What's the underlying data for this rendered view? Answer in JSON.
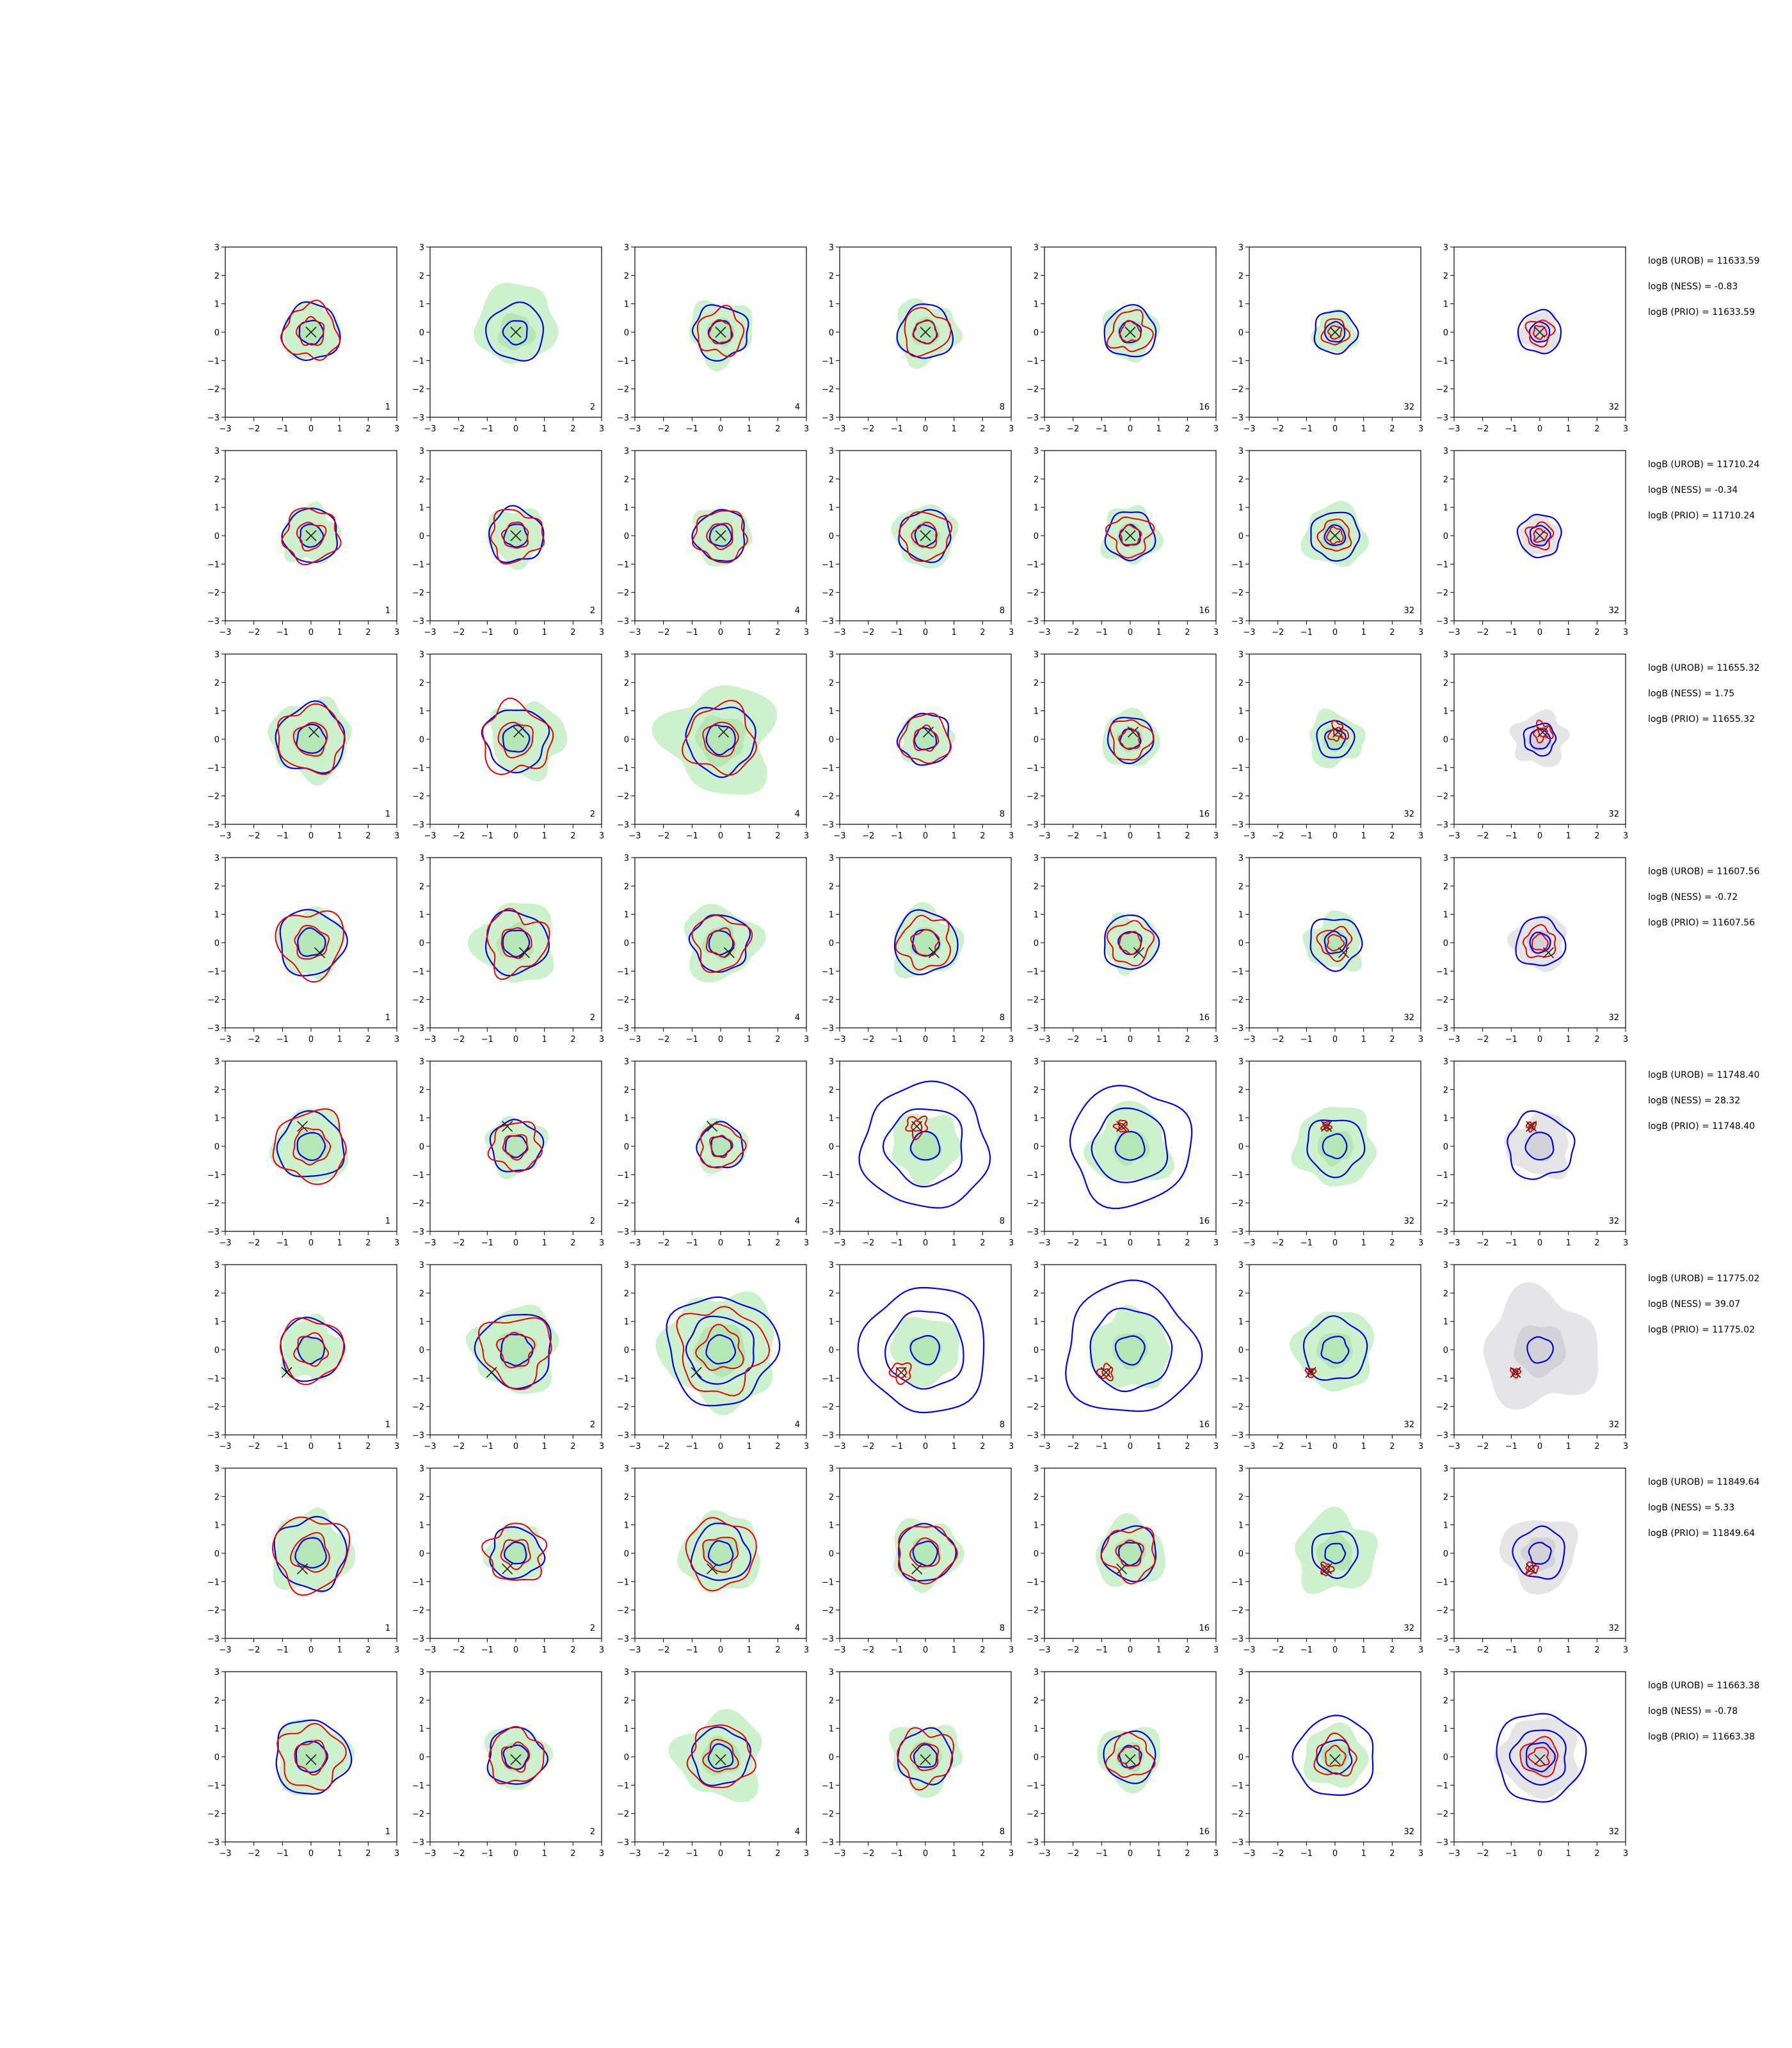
{
  "colors": {
    "fill_green": "#c8f0c8",
    "fill_gray": "#e2e2e6",
    "contour_blue": "#0000ee",
    "contour_red": "#ee0000",
    "marker": "#222222"
  },
  "chart_data": {
    "type": "contour-grid",
    "xlim": [
      -3,
      3
    ],
    "ylim": [
      -3,
      3
    ],
    "xticks": [
      -3,
      -2,
      -1,
      0,
      1,
      2,
      3
    ],
    "yticks": [
      -3,
      -2,
      -1,
      0,
      1,
      2,
      3
    ],
    "tick_labels": [
      "−3",
      "−2",
      "−1",
      "0",
      "1",
      "2",
      "3"
    ],
    "column_labels": [
      "1",
      "2",
      "4",
      "8",
      "16",
      "32",
      "32"
    ],
    "rows": [
      {
        "annotations": [
          "logB (UROB) = 11633.59",
          "logB (NESS) = -0.83",
          "logB (PRIO) = 11633.59"
        ],
        "marker": [
          0.0,
          0.0
        ],
        "fill_r": [
          1.0,
          1.4,
          1.1,
          1.1,
          0.95,
          0.75,
          0.7
        ],
        "blue_outer_r": [
          1.0,
          1.0,
          0.95,
          0.95,
          0.9,
          0.75,
          0.75
        ],
        "red_r": [
          0.95,
          0,
          0.8,
          0.8,
          0.7,
          0.45,
          0.45
        ]
      },
      {
        "annotations": [
          "logB (UROB) = 11710.24",
          "logB (NESS) = -0.34",
          "logB (PRIO) = 11710.24"
        ],
        "marker": [
          0.0,
          0.0
        ],
        "fill_r": [
          1.0,
          1.0,
          1.0,
          1.1,
          1.0,
          1.1,
          0.7
        ],
        "blue_outer_r": [
          0.95,
          0.95,
          0.9,
          0.9,
          0.85,
          0.85,
          0.75
        ],
        "red_r": [
          0.95,
          0.9,
          0.9,
          0.85,
          0.7,
          0.55,
          0.45
        ]
      },
      {
        "annotations": [
          "logB (UROB) = 11655.32",
          "logB (NESS) = 1.75",
          "logB (PRIO) = 11655.32"
        ],
        "marker": [
          0.1,
          0.25
        ],
        "fill_r": [
          1.4,
          1.3,
          1.9,
          0.9,
          1.0,
          0.95,
          0.95
        ],
        "blue_outer_r": [
          1.2,
          1.1,
          1.2,
          0.9,
          0.8,
          0.65,
          0.55
        ],
        "red_r": [
          1.15,
          1.2,
          1.2,
          0.85,
          0.7,
          0.3,
          0.3
        ]
      },
      {
        "annotations": [
          "logB (UROB) = 11607.56",
          "logB (NESS) = -0.72",
          "logB (PRIO) = 11607.56"
        ],
        "marker": [
          0.3,
          -0.35
        ],
        "fill_r": [
          1.2,
          1.4,
          1.3,
          1.2,
          0.95,
          1.0,
          0.95
        ],
        "blue_outer_r": [
          1.15,
          1.1,
          1.0,
          1.1,
          0.95,
          0.9,
          0.85
        ],
        "red_r": [
          1.15,
          1.05,
          0.95,
          0.9,
          0.75,
          0.55,
          0.55
        ]
      },
      {
        "annotations": [
          "logB (UROB) = 11748.40",
          "logB (NESS) = 28.32",
          "logB (PRIO) = 11748.40"
        ],
        "marker": [
          -0.3,
          0.7
        ],
        "fill_r": [
          1.3,
          1.0,
          0.9,
          1.2,
          1.4,
          1.4,
          1.1
        ],
        "blue_outer_r": [
          1.15,
          0.9,
          0.8,
          2.2,
          2.1,
          1.0,
          1.15
        ],
        "red_r": [
          1.25,
          0.85,
          0.75,
          0.35,
          0.2,
          0.15,
          0.15
        ]
      },
      {
        "annotations": [
          "logB (UROB) = 11775.02",
          "logB (NESS) = 39.07",
          "logB (PRIO) = 11775.02"
        ],
        "marker": [
          -0.85,
          -0.8
        ],
        "fill_r": [
          1.1,
          1.5,
          2.0,
          1.2,
          1.4,
          1.4,
          2.0
        ],
        "blue_outer_r": [
          1.1,
          1.3,
          1.9,
          2.2,
          2.3,
          1.1,
          0.0
        ],
        "red_r": [
          1.1,
          1.2,
          1.5,
          0.35,
          0.25,
          0.15,
          0.15
        ]
      },
      {
        "annotations": [
          "logB (UROB) = 11849.64",
          "logB (NESS) = 5.33",
          "logB (PRIO) = 11849.64"
        ],
        "marker": [
          -0.3,
          -0.55
        ],
        "fill_r": [
          1.4,
          1.0,
          1.4,
          1.2,
          1.2,
          1.4,
          1.3
        ],
        "blue_outer_r": [
          1.25,
          0.9,
          1.0,
          1.0,
          0.95,
          0.8,
          0.9
        ],
        "red_r": [
          1.3,
          1.0,
          1.2,
          1.0,
          0.9,
          0.2,
          0.2
        ]
      },
      {
        "annotations": [
          "logB (UROB) = 11663.38",
          "logB (NESS) = -0.78",
          "logB (PRIO) = 11663.38"
        ],
        "marker": [
          0.0,
          -0.1
        ],
        "fill_r": [
          1.3,
          1.1,
          1.5,
          1.2,
          1.1,
          1.1,
          1.4
        ],
        "blue_outer_r": [
          1.3,
          1.0,
          1.0,
          0.95,
          0.9,
          1.4,
          1.55
        ],
        "red_r": [
          1.1,
          0.95,
          1.1,
          0.95,
          0.75,
          0.7,
          0.65
        ]
      }
    ]
  }
}
